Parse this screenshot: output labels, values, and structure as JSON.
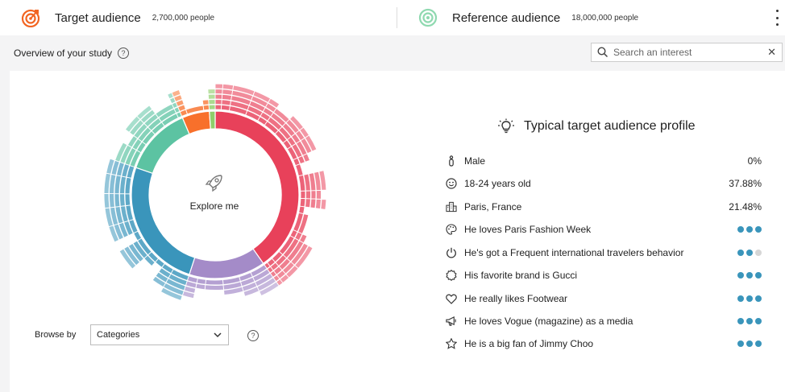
{
  "header": {
    "target": {
      "title": "Target audience",
      "count": "2,700,000 people",
      "icon": "target-icon",
      "color": "#f26522"
    },
    "reference": {
      "title": "Reference audience",
      "count": "18,000,000 people",
      "icon": "concentric-circle-icon",
      "color": "#6fcf97"
    },
    "menu_icon": "kebab-menu-icon"
  },
  "overview": {
    "label": "Overview of your study",
    "help_icon": "help-icon"
  },
  "search": {
    "placeholder": "Search an interest",
    "value": "",
    "search_icon": "search-icon",
    "clear_icon": "close-icon"
  },
  "sunburst": {
    "center_label": "Explore me",
    "center_icon": "rocket-icon",
    "segments": [
      {
        "color": "#e8415a",
        "start": 0,
        "end": 145
      },
      {
        "color": "#a48bc8",
        "start": 145,
        "end": 198
      },
      {
        "color": "#3a95bb",
        "start": 198,
        "end": 289
      },
      {
        "color": "#5cc3a2",
        "start": 289,
        "end": 337
      },
      {
        "color": "#f8702b",
        "start": 337,
        "end": 356
      },
      {
        "color": "#8fce6a",
        "start": 356,
        "end": 360
      }
    ]
  },
  "browse": {
    "label": "Browse by",
    "selected": "Categories",
    "help_icon": "help-icon"
  },
  "profile": {
    "title": "Typical target audience profile",
    "icon": "lightbulb-icon",
    "dot_color": "#3a95bb",
    "dot_empty_color": "#d6d6d6",
    "traits": [
      {
        "icon": "male-icon",
        "label": "Male",
        "value": "0%"
      },
      {
        "icon": "smiley-icon",
        "label": "18-24 years old",
        "value": "37.88%"
      },
      {
        "icon": "city-icon",
        "label": "Paris, France",
        "value": "21.48%"
      },
      {
        "icon": "palette-icon",
        "label": "He loves Paris Fashion Week",
        "dots": 3
      },
      {
        "icon": "power-icon",
        "label": "He's got a Frequent international travelers behavior",
        "dots": 2
      },
      {
        "icon": "badge-icon",
        "label": "His favorite brand is Gucci",
        "dots": 3
      },
      {
        "icon": "heart-icon",
        "label": "He really likes Footwear",
        "dots": 3
      },
      {
        "icon": "megaphone-icon",
        "label": "He loves Vogue (magazine) as a media",
        "dots": 3
      },
      {
        "icon": "star-icon",
        "label": "He is a big fan of Jimmy Choo",
        "dots": 3
      }
    ]
  }
}
